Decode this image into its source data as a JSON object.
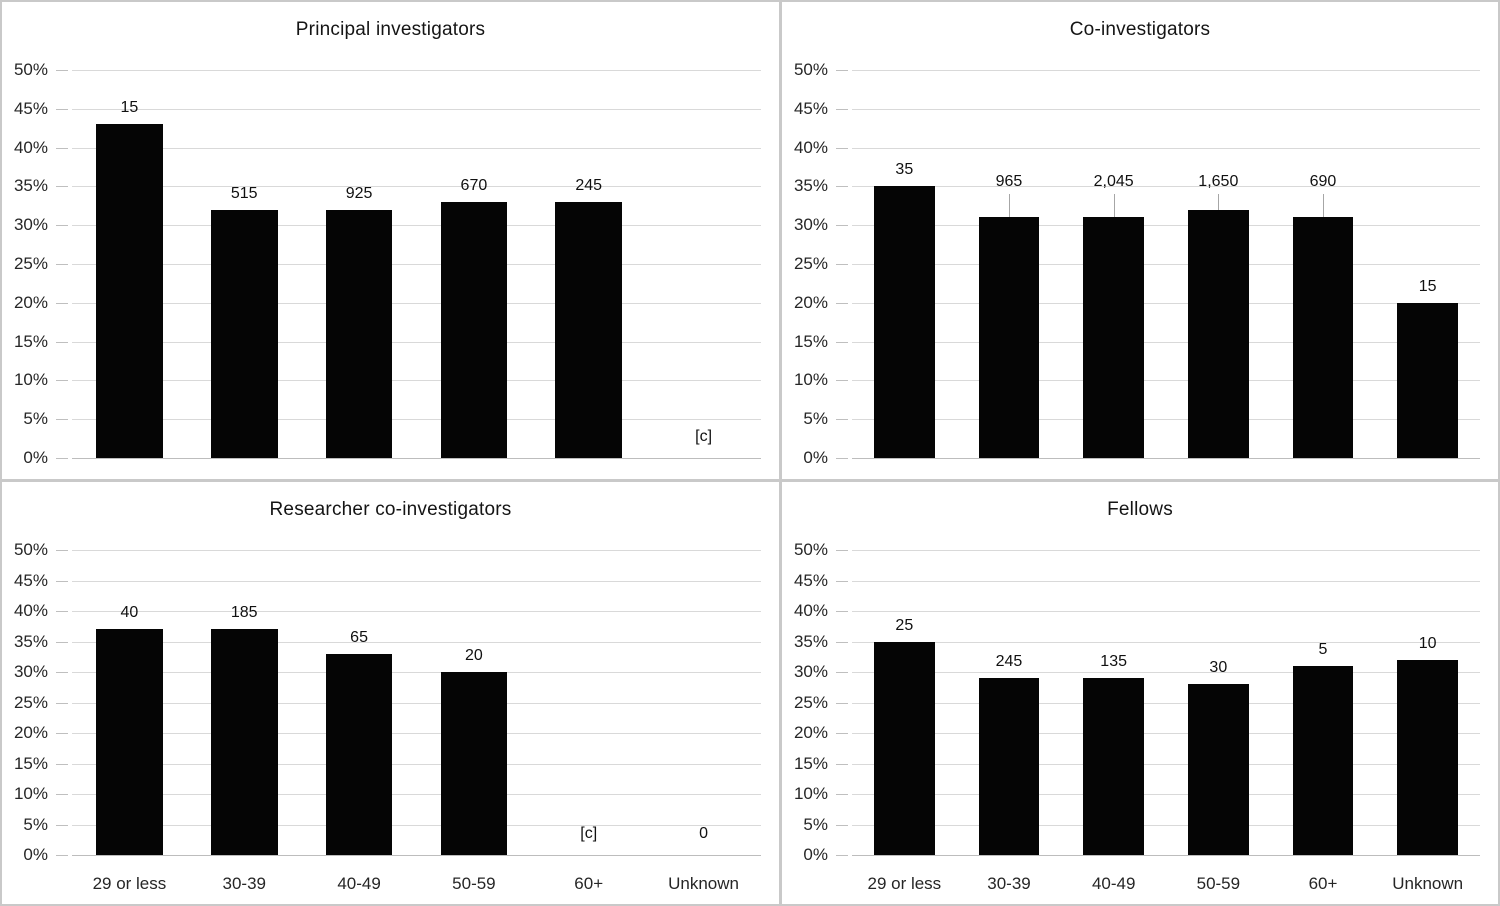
{
  "figure": {
    "y_axis_tick_labels_top_to_bottom": [
      "50%",
      "45%",
      "40%",
      "35%",
      "30%",
      "25%",
      "20%",
      "15%",
      "10%",
      "5%",
      "0%"
    ],
    "categories": [
      "29 or less",
      "30-39",
      "40-49",
      "50-59",
      "60+",
      "Unknown"
    ]
  },
  "colors": {
    "bar": "#050505",
    "gridline": "#d9d9d9",
    "baseline": "#bdbdbd",
    "tick": "#bfbfbf",
    "leader_line": "#a6a6a6",
    "panel_divider": "#c9c9c9",
    "text": "#262626"
  },
  "chart_data": [
    {
      "type": "bar",
      "panel": "top-left",
      "title": "Principal investigators",
      "categories": [
        "29 or less",
        "30-39",
        "40-49",
        "50-59",
        "60+",
        "Unknown"
      ],
      "values_pct": [
        43,
        32,
        32,
        33,
        33,
        null
      ],
      "bar_count_labels": [
        "15",
        "515",
        "925",
        "670",
        "245",
        "[c]"
      ],
      "label_leader_lines": [
        false,
        false,
        false,
        false,
        false,
        false
      ],
      "show_x_tick_labels": false,
      "ylim": [
        0,
        50
      ],
      "ytick_step": 5,
      "y_unit": "%",
      "grid": true,
      "legend": false
    },
    {
      "type": "bar",
      "panel": "top-right",
      "title": "Co-investigators",
      "categories": [
        "29 or less",
        "30-39",
        "40-49",
        "50-59",
        "60+",
        "Unknown"
      ],
      "values_pct": [
        35,
        31,
        31,
        32,
        31,
        20
      ],
      "bar_count_labels": [
        "35",
        "965",
        "2,045",
        "1,650",
        "690",
        "15"
      ],
      "label_leader_lines": [
        false,
        true,
        true,
        true,
        true,
        false
      ],
      "show_x_tick_labels": false,
      "ylim": [
        0,
        50
      ],
      "ytick_step": 5,
      "y_unit": "%",
      "grid": true,
      "legend": false
    },
    {
      "type": "bar",
      "panel": "bottom-left",
      "title": "Researcher co-investigators",
      "categories": [
        "29 or less",
        "30-39",
        "40-49",
        "50-59",
        "60+",
        "Unknown"
      ],
      "values_pct": [
        37,
        37,
        33,
        30,
        null,
        null
      ],
      "bar_count_labels": [
        "40",
        "185",
        "65",
        "20",
        "[c]",
        "0"
      ],
      "label_leader_lines": [
        false,
        false,
        false,
        false,
        false,
        false
      ],
      "show_x_tick_labels": true,
      "ylim": [
        0,
        50
      ],
      "ytick_step": 5,
      "y_unit": "%",
      "grid": true,
      "legend": false
    },
    {
      "type": "bar",
      "panel": "bottom-right",
      "title": "Fellows",
      "categories": [
        "29 or less",
        "30-39",
        "40-49",
        "50-59",
        "60+",
        "Unknown"
      ],
      "values_pct": [
        35,
        29,
        29,
        28,
        31,
        32
      ],
      "bar_count_labels": [
        "25",
        "245",
        "135",
        "30",
        "5",
        "10"
      ],
      "label_leader_lines": [
        false,
        false,
        false,
        false,
        false,
        false
      ],
      "show_x_tick_labels": true,
      "ylim": [
        0,
        50
      ],
      "ytick_step": 5,
      "y_unit": "%",
      "grid": true,
      "legend": false
    }
  ]
}
